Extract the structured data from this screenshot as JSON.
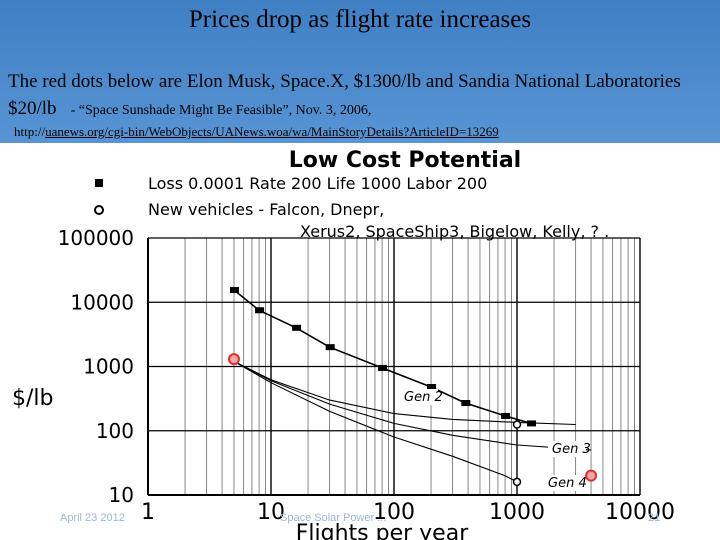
{
  "slide": {
    "title": "Prices drop as flight rate increases",
    "line1": "The red dots below are Elon Musk, Space.X, $1300/lb  and Sandia National Laboratories",
    "line2_big": "$20/lb",
    "line2_small": "- “Space Sunshade Might Be Feasible”, Nov. 3, 2006,",
    "link_prefix": "http://",
    "link_url": "uanews.org/cgi-bin/WebObjects/UANews.woa/wa/MainStoryDetails?ArticleID=13269",
    "footer_date": "April 23 2012",
    "footer_center": "Space Solar Power ...",
    "footer_page": "21"
  },
  "chart_data": {
    "type": "line",
    "title": "Low Cost Potential",
    "legend": [
      {
        "marker": "square",
        "text": "Loss 0.0001   Rate 200   Life 1000    Labor 200"
      },
      {
        "marker": "circle",
        "text": "New vehicles - Falcon, Dnepr,"
      },
      {
        "marker": "none",
        "text": "Xerus2, SpaceShip3, Bigelow, Kelly, ? ."
      }
    ],
    "xlabel": "Flights  per year",
    "ylabel": "$/lb",
    "xscale": "log",
    "yscale": "log",
    "xlim": [
      1,
      10000
    ],
    "ylim": [
      10,
      100000
    ],
    "x_ticks": [
      "1",
      "10",
      "100",
      "1000",
      "10000"
    ],
    "y_ticks": [
      "10",
      "100",
      "1000",
      "10000",
      "100000"
    ],
    "grid": true,
    "series": [
      {
        "marker": "square",
        "x": [
          5,
          8,
          16,
          30,
          80,
          200,
          380,
          800,
          1300
        ],
        "y": [
          15500,
          7500,
          4000,
          2000,
          950,
          480,
          270,
          170,
          130
        ]
      },
      {
        "name": "Gen 2",
        "x": [
          5,
          10,
          30,
          100,
          300,
          1000,
          3000
        ],
        "y": [
          1200,
          620,
          300,
          185,
          150,
          135,
          125
        ]
      },
      {
        "name": "Gen 3",
        "x": [
          5,
          10,
          30,
          100,
          300,
          1000,
          4000
        ],
        "y": [
          1200,
          600,
          260,
          130,
          85,
          60,
          50
        ]
      },
      {
        "name": "Gen 4",
        "x": [
          5,
          10,
          30,
          100,
          300,
          800,
          1000
        ],
        "y": [
          1200,
          560,
          200,
          80,
          40,
          20,
          16
        ]
      },
      {
        "marker": "point",
        "x": [
          1000,
          1000
        ],
        "y": [
          125,
          16
        ]
      }
    ],
    "red_points": [
      {
        "x": 5,
        "y": 1300
      },
      {
        "x": 4000,
        "y": 20
      }
    ],
    "curve_labels": [
      "Gen 2",
      "Gen 3",
      "Gen 4"
    ]
  }
}
